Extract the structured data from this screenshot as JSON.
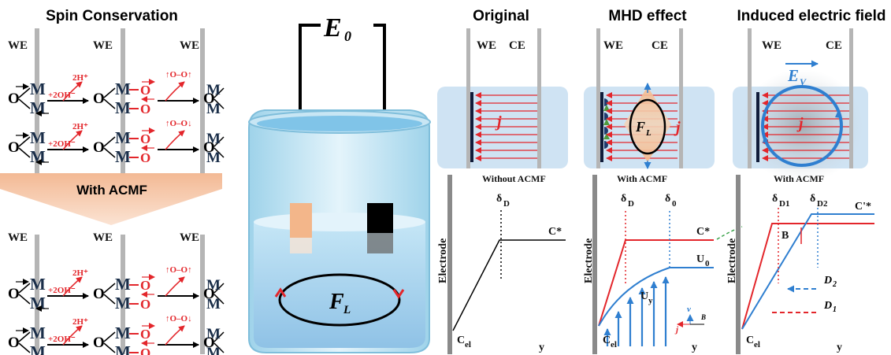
{
  "left_panel": {
    "title": "Spin Conservation",
    "electrode_label": "WE",
    "reaction_label": "+2OH⁻",
    "proton_label": "2H⁺",
    "oxygen_parallel": "↑O–O↑",
    "oxygen_antiparallel": "↑O–O↓",
    "field_banner": "With ACMF",
    "metal_symbol": "M",
    "oxygen_symbol": "O"
  },
  "center_panel": {
    "voltage_label": "E",
    "voltage_sub": "0",
    "force_label": "F",
    "force_sub": "L"
  },
  "right_panels": [
    {
      "title": "Original",
      "caption": "Without ACMF",
      "we": "WE",
      "ce": "CE",
      "current": "j",
      "axis_y": "Electrode",
      "c_el": "C",
      "c_el_sub": "el",
      "x_axis": "y",
      "delta": "δ",
      "delta_sub": "D",
      "c_star": "C*"
    },
    {
      "title": "MHD effect",
      "caption": "With ACMF",
      "we": "WE",
      "ce": "CE",
      "current": "j",
      "force": "F",
      "force_sub": "L",
      "axis_y": "Electrode",
      "c_el": "C",
      "c_el_sub": "el",
      "x_axis": "y",
      "delta": "δ",
      "delta_d_sub": "D",
      "delta_0_sub": "0",
      "c_star": "C*",
      "u0": "U",
      "u0_sub": "0",
      "uy": "U",
      "uy_sub": "y",
      "v_label": "v",
      "j_label": "j",
      "b_label": "B"
    },
    {
      "title": "Induced electric field",
      "caption": "With ACMF",
      "we": "WE",
      "ce": "CE",
      "current": "j",
      "ev": "E",
      "ev_sub": "V",
      "axis_y": "Electrode",
      "c_el": "C",
      "c_el_sub": "el",
      "x_axis": "y",
      "delta": "δ",
      "d1_sub": "D1",
      "d2_sub": "D2",
      "c_star2": "C'*",
      "b_label": "B",
      "dd2": "D",
      "dd2_sub": "2",
      "dd1": "D",
      "dd1_sub": "1"
    }
  ],
  "colors": {
    "red": "#e3262b",
    "blue": "#2f7fd0",
    "metal": "#1a2e49",
    "electrode_gray": "#b5b5b5",
    "banner": "#f6c8a6"
  }
}
